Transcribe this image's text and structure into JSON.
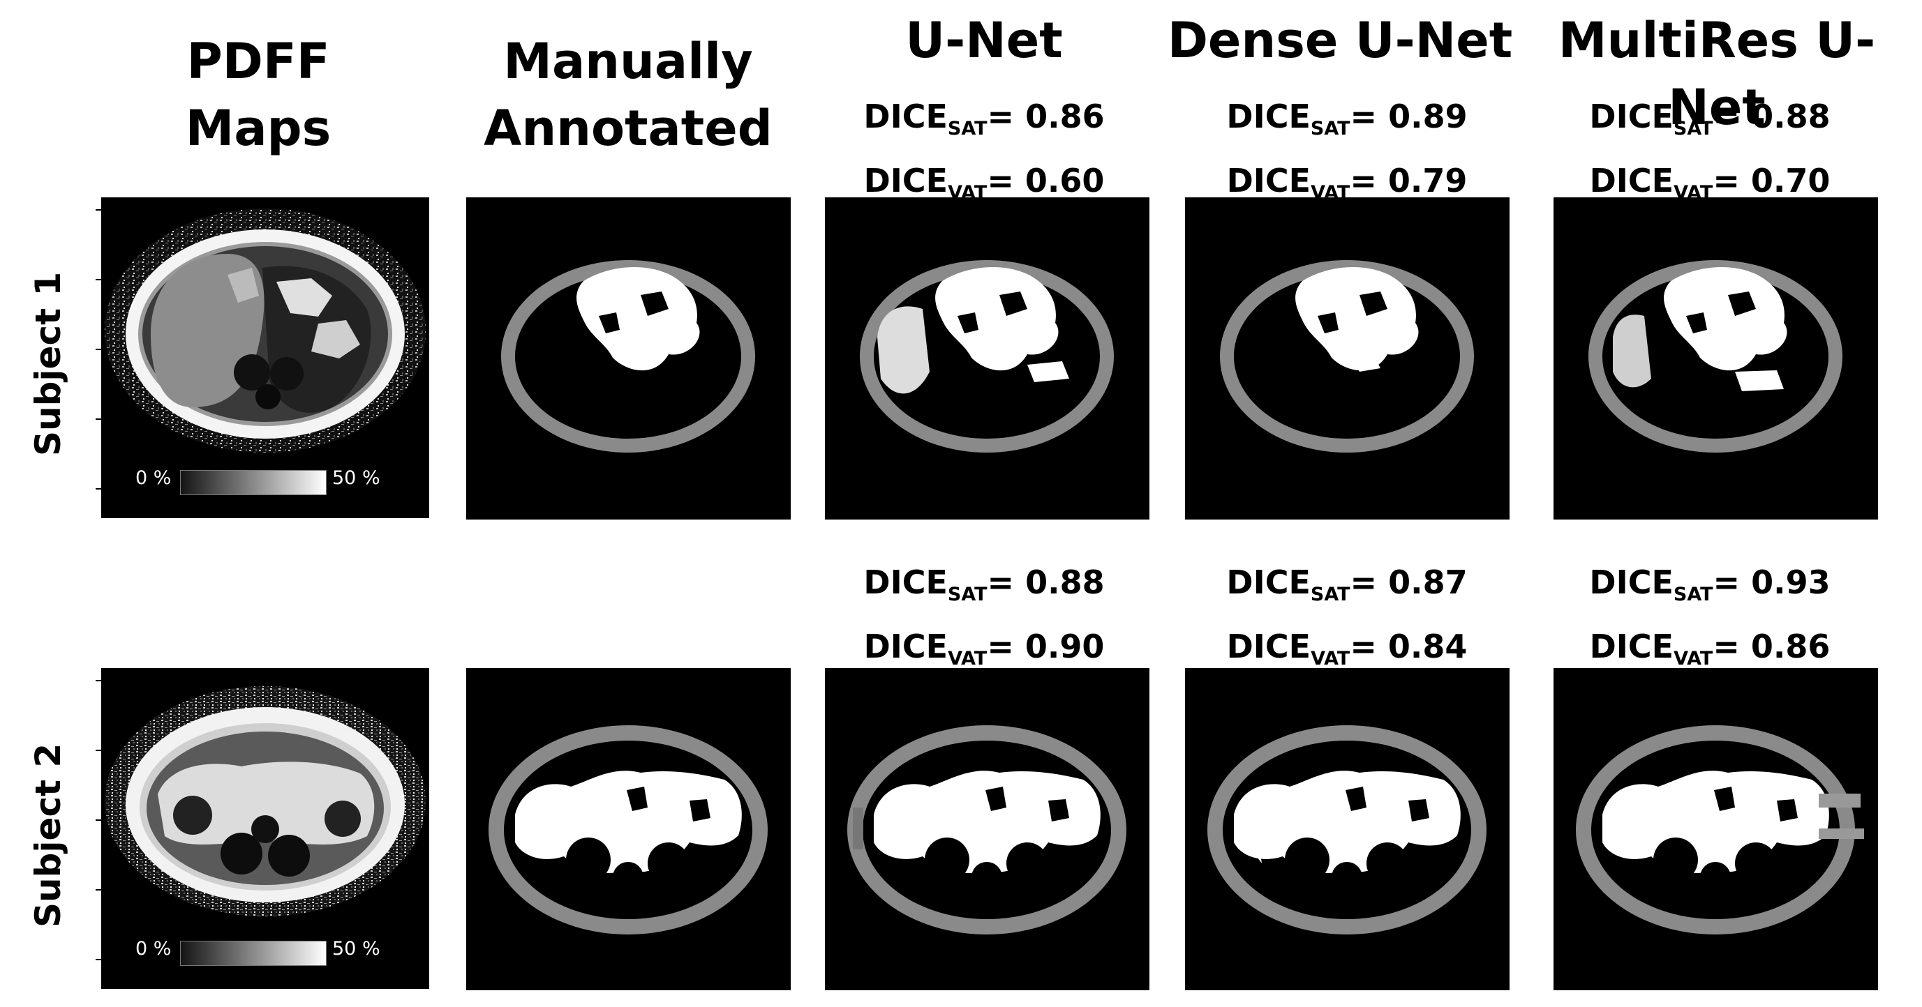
{
  "columns": [
    {
      "title_line1": "PDFF",
      "title_line2": "Maps"
    },
    {
      "title_line1": "Manually",
      "title_line2": "Annotated"
    },
    {
      "title_line1": "U-Net"
    },
    {
      "title_line1": "Dense U-Net"
    },
    {
      "title_line1": "MultiRes U-Net"
    }
  ],
  "rows": [
    {
      "label": "Subject 1"
    },
    {
      "label": "Subject 2"
    }
  ],
  "dice": {
    "prefix": "DICE",
    "sat_sub": "SAT",
    "vat_sub": "VAT",
    "eq": "= ",
    "subject1": {
      "unet": {
        "sat": "0.86",
        "vat": "0.60"
      },
      "dense": {
        "sat": "0.89",
        "vat": "0.79"
      },
      "multires": {
        "sat": "0.88",
        "vat": "0.70"
      }
    },
    "subject2": {
      "unet": {
        "sat": "0.88",
        "vat": "0.90"
      },
      "dense": {
        "sat": "0.87",
        "vat": "0.84"
      },
      "multires": {
        "sat": "0.93",
        "vat": "0.86"
      }
    }
  },
  "colorbar": {
    "min_label": "0 %",
    "max_label": "50 %"
  },
  "colors": {
    "sat": "#8a8a8a",
    "vat": "#ffffff",
    "background": "#000000"
  }
}
